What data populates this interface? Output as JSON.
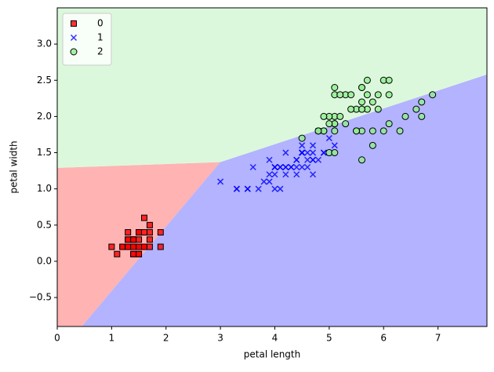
{
  "chart_data": {
    "type": "scatter",
    "x_label": "petal length",
    "y_label": "petal width",
    "xlim": [
      0,
      7.9
    ],
    "ylim": [
      -0.9,
      3.5
    ],
    "xticks": [
      0,
      1,
      2,
      3,
      4,
      5,
      6,
      7
    ],
    "yticks": [
      {
        "value": -0.5,
        "label": "−0.5"
      },
      {
        "value": 0,
        "label": "0.0"
      },
      0.5,
      {
        "value": 1,
        "label": "1.0"
      },
      1.5,
      {
        "value": 2,
        "label": "2.0"
      },
      2.5,
      {
        "value": 3,
        "label": "3.0"
      }
    ],
    "legend": "upper left",
    "regions": [
      {
        "color": "#ffb3b3",
        "x": [
          0,
          0.45,
          3.0,
          0
        ],
        "y": [
          -0.9,
          -0.9,
          1.37,
          1.29
        ]
      },
      {
        "color": "#b3b3ff",
        "x": [
          0.45,
          7.9,
          7.9,
          3.0
        ],
        "y": [
          -0.9,
          -0.9,
          2.58,
          1.37
        ]
      },
      {
        "color": "#dcf8dc",
        "x": [
          0,
          3.0,
          7.9,
          7.9,
          0
        ],
        "y": [
          1.29,
          1.37,
          2.58,
          3.5,
          3.5
        ]
      }
    ],
    "series": [
      {
        "name": "0",
        "color": "#ff0000",
        "marker": "square",
        "x": [
          1.4,
          1.4,
          1.3,
          1.5,
          1.4,
          1.7,
          1.4,
          1.5,
          1.4,
          1.5,
          1.5,
          1.6,
          1.4,
          1.1,
          1.2,
          1.5,
          1.3,
          1.4,
          1.7,
          1.5,
          1.7,
          1.5,
          1.0,
          1.7,
          1.9,
          1.6,
          1.6,
          1.5,
          1.4,
          1.6,
          1.6,
          1.5,
          1.5,
          1.4,
          1.5,
          1.2,
          1.3,
          1.4,
          1.3,
          1.5,
          1.3,
          1.3,
          1.3,
          1.6,
          1.9,
          1.4,
          1.6,
          1.4,
          1.5,
          1.4
        ],
        "y": [
          0.2,
          0.2,
          0.2,
          0.2,
          0.2,
          0.4,
          0.3,
          0.2,
          0.2,
          0.1,
          0.2,
          0.2,
          0.1,
          0.1,
          0.2,
          0.4,
          0.4,
          0.3,
          0.3,
          0.3,
          0.2,
          0.4,
          0.2,
          0.5,
          0.2,
          0.2,
          0.4,
          0.2,
          0.2,
          0.2,
          0.2,
          0.4,
          0.1,
          0.2,
          0.2,
          0.2,
          0.2,
          0.1,
          0.2,
          0.2,
          0.3,
          0.3,
          0.2,
          0.6,
          0.4,
          0.3,
          0.2,
          0.2,
          0.2,
          0.2
        ]
      },
      {
        "name": "1",
        "color": "#0000ff",
        "marker": "x",
        "x": [
          4.7,
          4.5,
          4.9,
          4.0,
          4.6,
          4.5,
          4.7,
          3.3,
          4.6,
          3.9,
          3.5,
          4.2,
          4.0,
          4.7,
          3.6,
          4.4,
          4.5,
          4.1,
          4.5,
          3.9,
          4.8,
          4.0,
          4.9,
          4.7,
          4.3,
          4.4,
          4.8,
          5.0,
          4.5,
          3.5,
          3.8,
          3.7,
          3.9,
          5.1,
          4.5,
          4.5,
          4.7,
          4.4,
          4.1,
          4.0,
          4.4,
          4.6,
          4.0,
          3.3,
          4.2,
          4.2,
          4.2,
          4.3,
          3.0,
          4.1
        ],
        "y": [
          1.4,
          1.5,
          1.5,
          1.3,
          1.5,
          1.3,
          1.6,
          1.0,
          1.3,
          1.4,
          1.0,
          1.5,
          1.0,
          1.4,
          1.3,
          1.4,
          1.5,
          1.0,
          1.5,
          1.1,
          1.8,
          1.3,
          1.5,
          1.2,
          1.3,
          1.4,
          1.4,
          1.7,
          1.5,
          1.0,
          1.1,
          1.0,
          1.2,
          1.6,
          1.5,
          1.6,
          1.5,
          1.3,
          1.3,
          1.3,
          1.2,
          1.4,
          1.2,
          1.0,
          1.3,
          1.2,
          1.3,
          1.3,
          1.1,
          1.3
        ]
      },
      {
        "name": "2",
        "color": "#90ee90",
        "marker": "circle",
        "x": [
          6.0,
          5.1,
          5.9,
          5.6,
          5.8,
          6.6,
          4.5,
          6.3,
          5.8,
          6.1,
          5.1,
          5.3,
          5.5,
          5.0,
          5.1,
          5.3,
          5.5,
          6.7,
          6.9,
          5.0,
          5.7,
          4.9,
          6.7,
          4.9,
          5.7,
          6.0,
          4.8,
          4.9,
          5.6,
          5.8,
          6.1,
          6.4,
          5.6,
          5.1,
          5.6,
          6.1,
          5.6,
          5.5,
          4.8,
          5.4,
          5.6,
          5.1,
          5.1,
          5.9,
          5.7,
          5.2,
          5.0,
          5.2,
          5.4,
          5.1
        ],
        "y": [
          2.5,
          1.9,
          2.1,
          1.8,
          2.2,
          2.1,
          1.7,
          1.8,
          1.8,
          2.5,
          2.0,
          1.9,
          2.1,
          2.0,
          2.4,
          2.3,
          1.8,
          2.2,
          2.3,
          1.5,
          2.3,
          2.0,
          2.0,
          1.8,
          2.1,
          1.8,
          1.8,
          1.8,
          2.1,
          1.6,
          1.9,
          2.0,
          2.2,
          1.5,
          1.4,
          2.3,
          2.4,
          1.8,
          1.8,
          2.1,
          2.4,
          2.3,
          1.9,
          2.3,
          2.5,
          2.3,
          1.9,
          2.0,
          2.3,
          1.8
        ]
      }
    ]
  }
}
